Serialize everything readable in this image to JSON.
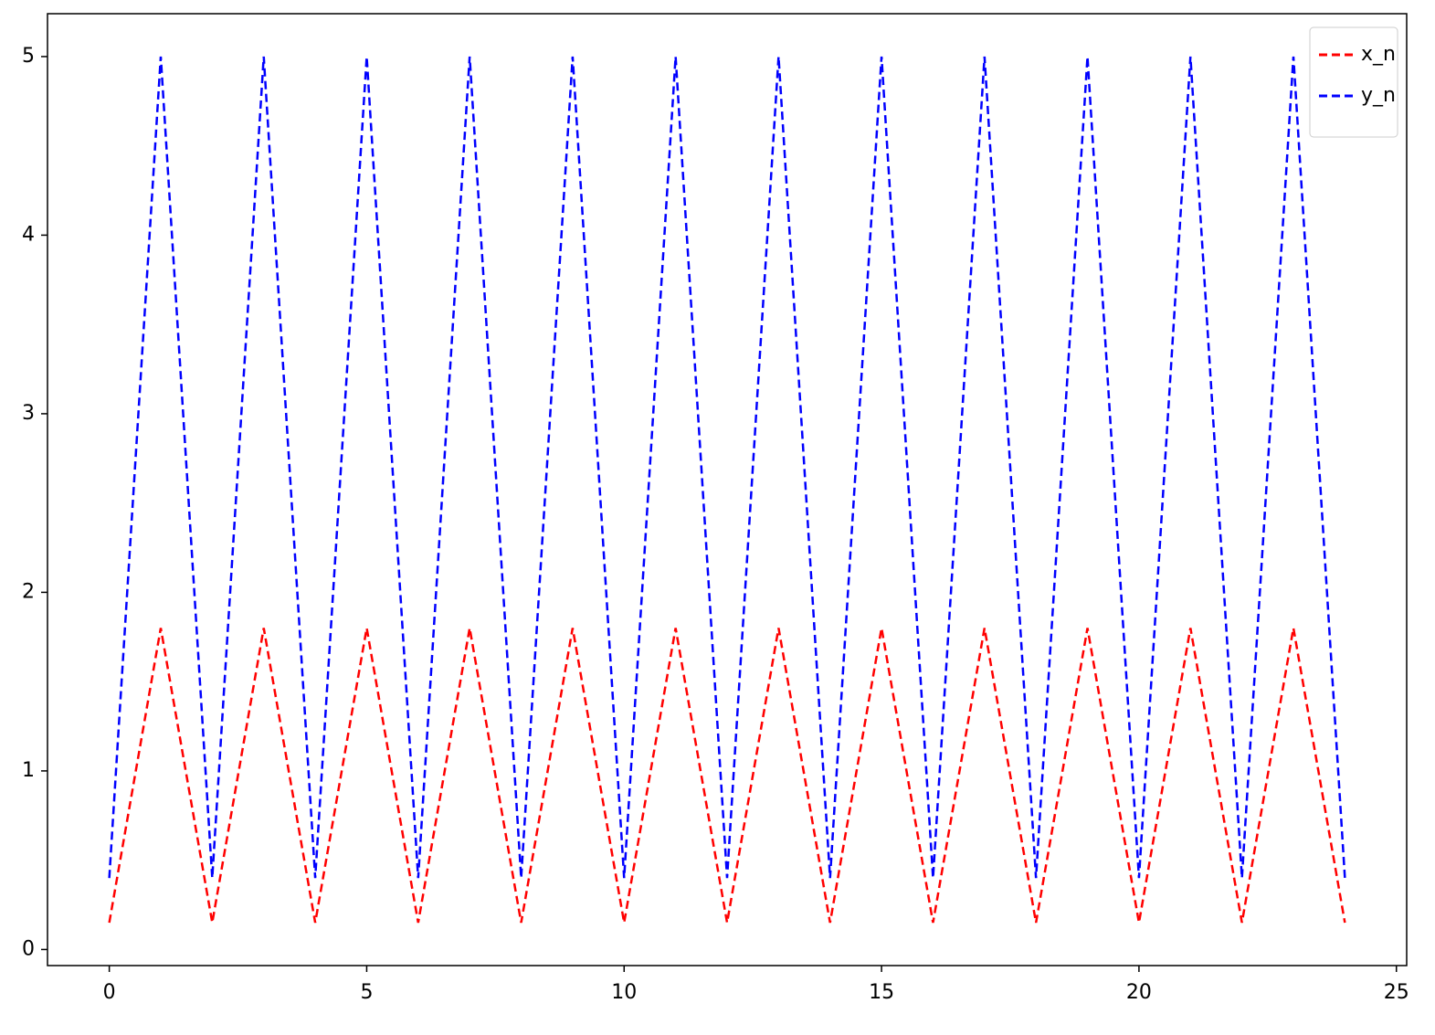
{
  "chart_data": {
    "type": "line",
    "x": [
      0,
      1,
      2,
      3,
      4,
      5,
      6,
      7,
      8,
      9,
      10,
      11,
      12,
      13,
      14,
      15,
      16,
      17,
      18,
      19,
      20,
      21,
      22,
      23,
      24
    ],
    "series": [
      {
        "name": "x_n",
        "color": "#ff0000",
        "values": [
          0.15,
          1.8,
          0.15,
          1.8,
          0.15,
          1.8,
          0.15,
          1.8,
          0.15,
          1.8,
          0.15,
          1.8,
          0.15,
          1.8,
          0.15,
          1.8,
          0.15,
          1.8,
          0.15,
          1.8,
          0.15,
          1.8,
          0.15,
          1.8,
          0.15
        ]
      },
      {
        "name": "y_n",
        "color": "#0000ff",
        "values": [
          0.4,
          5,
          0.4,
          5,
          0.4,
          5,
          0.4,
          5,
          0.4,
          5,
          0.4,
          5,
          0.4,
          5,
          0.4,
          5,
          0.4,
          5,
          0.4,
          5,
          0.4,
          5,
          0.4,
          5,
          0.4
        ]
      }
    ],
    "xlim": [
      -1.2,
      25.2
    ],
    "xticks": [
      0,
      5,
      10,
      15,
      20,
      25
    ],
    "ylim": [
      -0.09,
      5.24
    ],
    "yticks": [
      0,
      1,
      2,
      3,
      4,
      5
    ],
    "grid": false,
    "legend": "upper-right",
    "line_style": "dashed"
  }
}
